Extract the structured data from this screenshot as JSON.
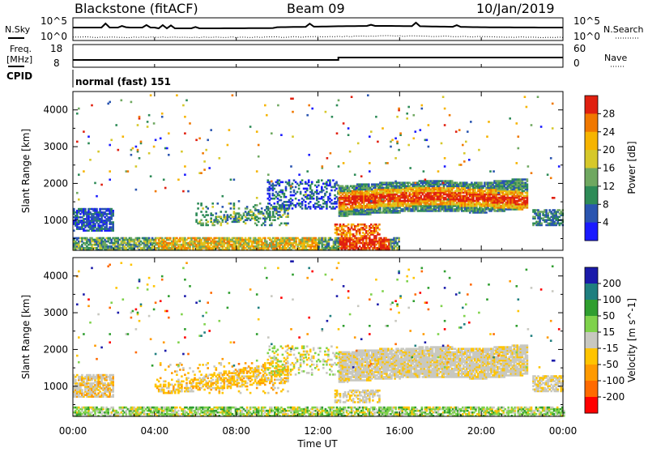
{
  "header": {
    "station": "Blackstone (fitACF)",
    "beam": "Beam 09",
    "date": "10/Jan/2019"
  },
  "side_labels": {
    "nsky": "N.Sky",
    "nsearch": "N.Search",
    "freq_line1": "Freq.",
    "freq_line2": "[MHz]",
    "nave": "Nave",
    "cpid": "CPID"
  },
  "cpid_value": "normal (fast) 151",
  "noise_ticks": {
    "top": "10^5",
    "bottom": "10^0"
  },
  "freq_ticks": {
    "left": [
      "18",
      "8"
    ],
    "right": [
      "60",
      "0"
    ]
  },
  "x_axis": {
    "label": "Time UT",
    "ticks": [
      "00:00",
      "04:00",
      "08:00",
      "12:00",
      "16:00",
      "20:00",
      "00:00"
    ]
  },
  "colors": {
    "power_scale": [
      "#1a1aff",
      "#2a55b0",
      "#2e8b57",
      "#6fa860",
      "#d6c82a",
      "#f6b400",
      "#f07800",
      "#e02010"
    ],
    "velocity_scale": [
      "#ff0000",
      "#ff6a00",
      "#ff9a00",
      "#ffc400",
      "#c8c8c0",
      "#7fd24b",
      "#2f9e2f",
      "#1f7f7f",
      "#1a1aaa"
    ]
  },
  "chart_data": [
    {
      "type": "heatmap",
      "name": "power",
      "ylabel": "Slant Range [km]",
      "xlabel": "Time UT",
      "x_range": [
        "00:00",
        "24:00"
      ],
      "y_range": [
        180,
        4500
      ],
      "y_ticks": [
        "4000",
        "3000",
        "2000",
        "1000"
      ],
      "colorbar_label": "Power [dB]",
      "colorbar_ticks": [
        "28",
        "24",
        "20",
        "16",
        "12",
        "8",
        "4"
      ],
      "features": [
        {
          "t": [
            0.0,
            2.0
          ],
          "range_km": [
            700,
            1300
          ],
          "level": "low (4-12 dB)"
        },
        {
          "t": [
            22.5,
            24.0
          ],
          "range_km": [
            900,
            1300
          ],
          "level": "low (4-12 dB)"
        },
        {
          "t": [
            6.0,
            10.5
          ],
          "range_km": [
            900,
            1500
          ],
          "level": "low-mid (8-16 dB)"
        },
        {
          "t": [
            13.0,
            22.0
          ],
          "range_km": [
            1100,
            2000
          ],
          "level": "high (16-28 dB)"
        },
        {
          "t": [
            0.0,
            16.0
          ],
          "range_km": [
            180,
            500
          ],
          "level": "mixed, peak ~28 dB near 14:00"
        }
      ]
    },
    {
      "type": "heatmap",
      "name": "velocity",
      "ylabel": "Slant Range [km]",
      "xlabel": "Time UT",
      "x_range": [
        "00:00",
        "24:00"
      ],
      "y_range": [
        180,
        4500
      ],
      "y_ticks": [
        "4000",
        "3000",
        "2000",
        "1000"
      ],
      "colorbar_label": "Velocity [m s^-1]",
      "colorbar_ticks": [
        "200",
        "100",
        "50",
        "15",
        "-15",
        "-50",
        "-100",
        "-200"
      ],
      "features": [
        {
          "t": [
            0.0,
            2.0
          ],
          "range_km": [
            700,
            1300
          ],
          "level": "-15 to 15 m/s"
        },
        {
          "t": [
            4.0,
            10.5
          ],
          "range_km": [
            800,
            1700
          ],
          "level": "-50 to -15 m/s"
        },
        {
          "t": [
            13.0,
            22.0
          ],
          "range_km": [
            1100,
            2000
          ],
          "level": "-15 to 15 m/s"
        },
        {
          "t": [
            0.0,
            24.0
          ],
          "range_km": [
            180,
            400
          ],
          "level": "15 to 50 m/s"
        }
      ]
    }
  ]
}
